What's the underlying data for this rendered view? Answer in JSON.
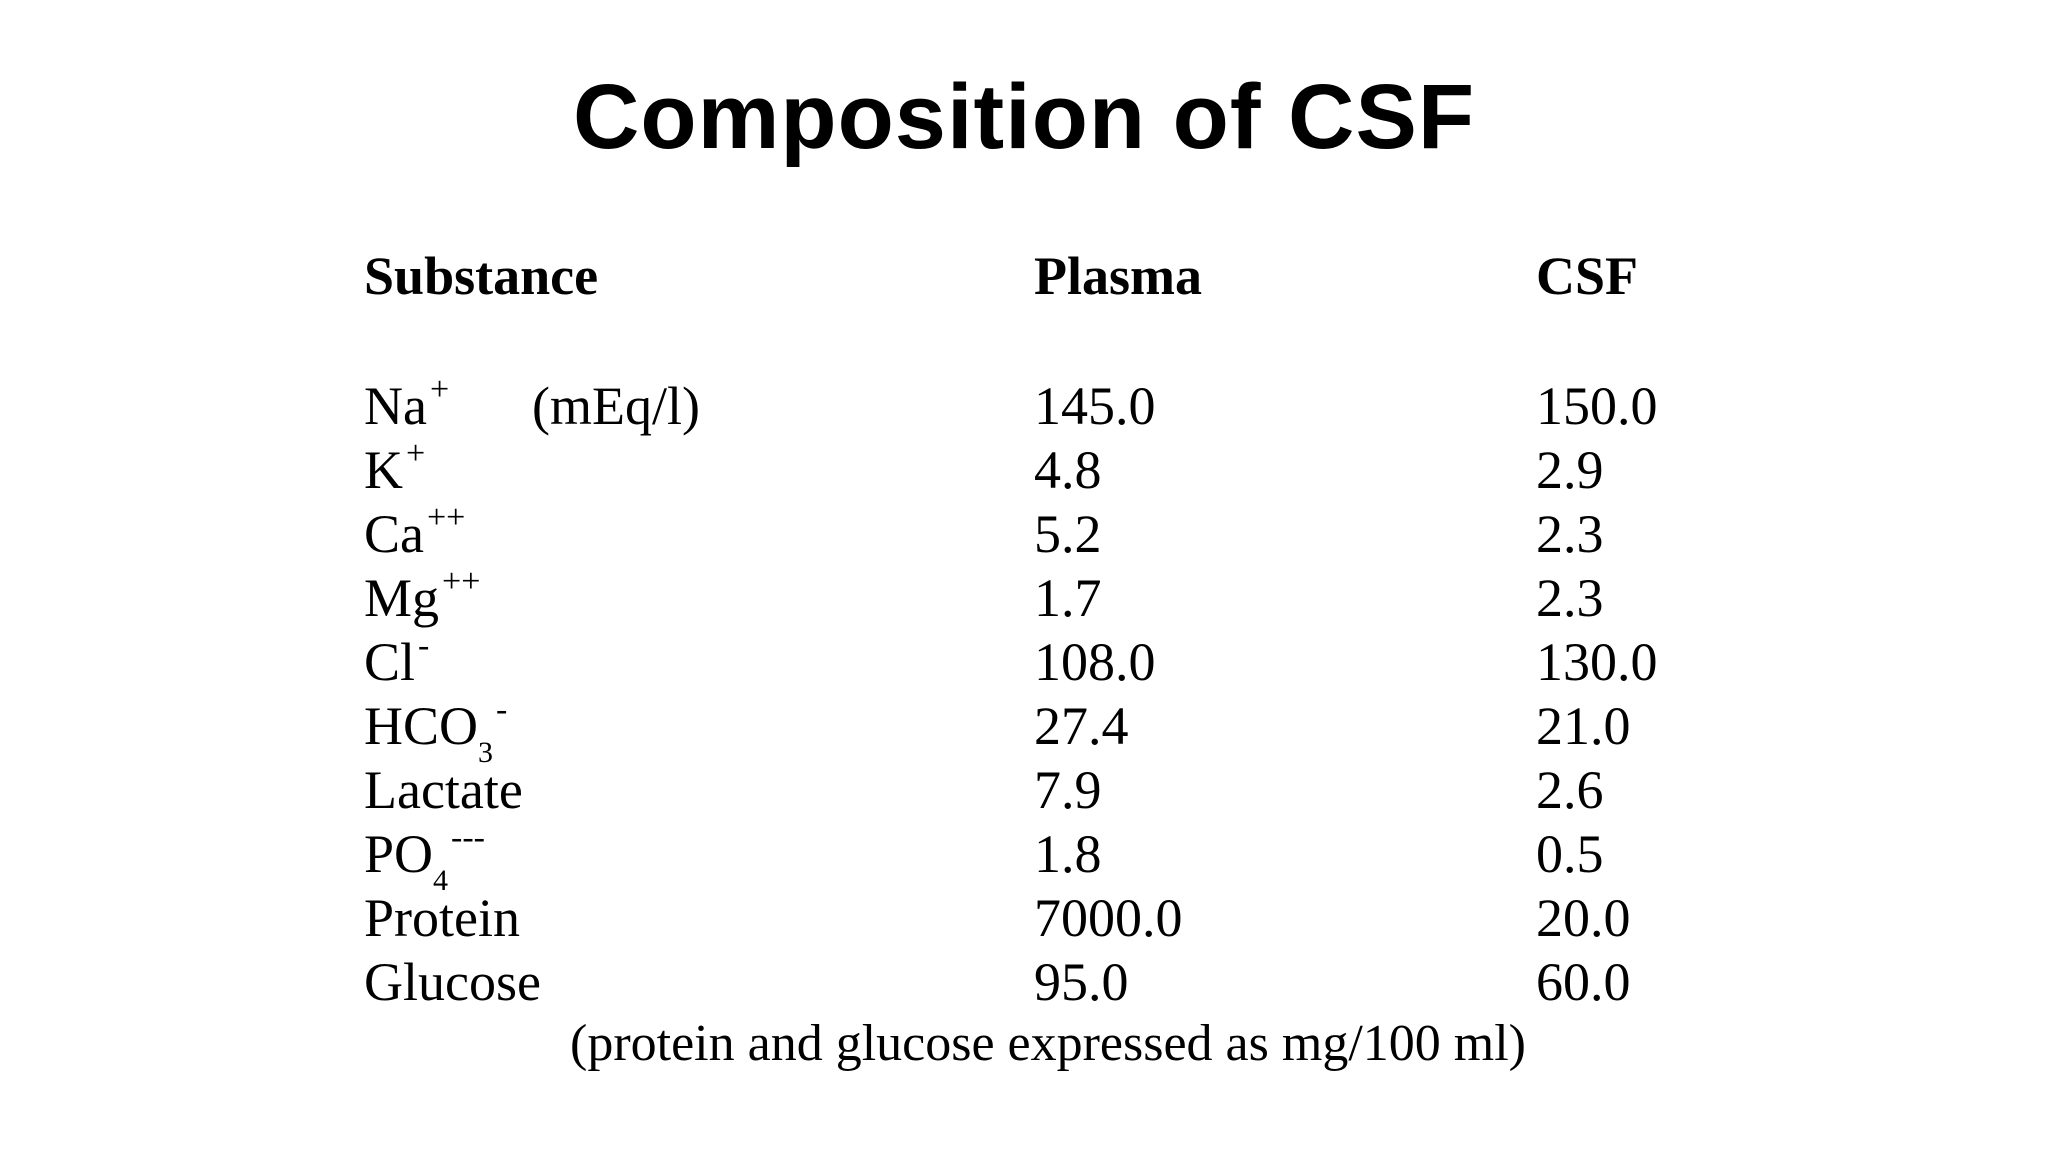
{
  "title": "Composition of CSF",
  "table": {
    "headers": [
      "Substance",
      "Plasma",
      "CSF"
    ],
    "unit_note": "(mEq/l)",
    "rows": [
      {
        "base": "Na",
        "sub": "",
        "sup": "+",
        "plasma": "145.0",
        "csf": "150.0"
      },
      {
        "base": "K",
        "sub": "",
        "sup": "+",
        "plasma": "4.8",
        "csf": "2.9"
      },
      {
        "base": "Ca",
        "sub": "",
        "sup": "++",
        "plasma": "5.2",
        "csf": "2.3"
      },
      {
        "base": "Mg",
        "sub": "",
        "sup": "++",
        "plasma": "1.7",
        "csf": "2.3"
      },
      {
        "base": "Cl",
        "sub": "",
        "sup": "-",
        "plasma": "108.0",
        "csf": "130.0"
      },
      {
        "base": "HCO",
        "sub": "3",
        "sup": "-",
        "plasma": "27.4",
        "csf": "21.0"
      },
      {
        "base": "Lactate",
        "sub": "",
        "sup": "",
        "plasma": "7.9",
        "csf": "2.6"
      },
      {
        "base": "PO",
        "sub": "4",
        "sup": "---",
        "plasma": "1.8",
        "csf": "0.5"
      },
      {
        "base": "Protein",
        "sub": "",
        "sup": "",
        "plasma": "7000.0",
        "csf": "20.0"
      },
      {
        "base": "Glucose",
        "sub": "",
        "sup": "",
        "plasma": "95.0",
        "csf": "60.0"
      }
    ]
  },
  "footnote": "(protein and glucose expressed as mg/100 ml)"
}
